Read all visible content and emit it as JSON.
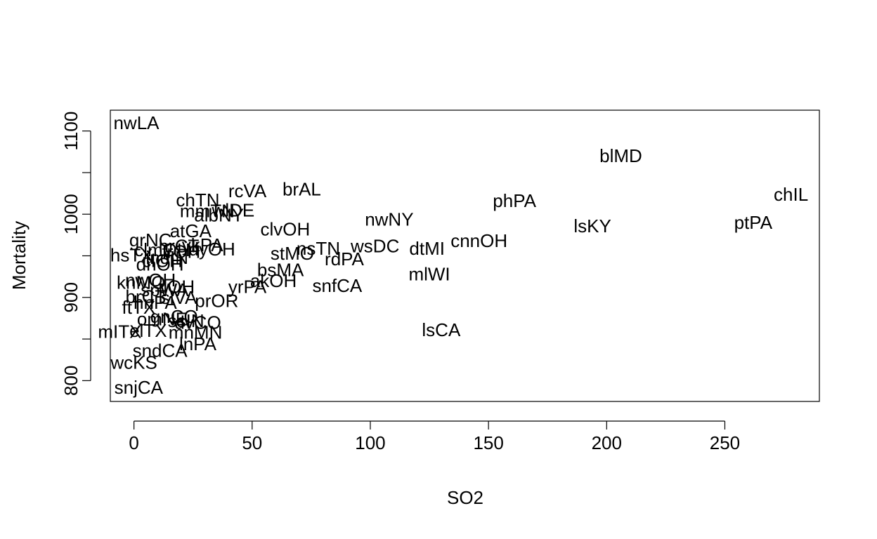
{
  "chart_data": {
    "type": "scatter",
    "title": "",
    "xlabel": "SO2",
    "ylabel": "Mortality",
    "xlim": [
      -10,
      290
    ],
    "ylim": [
      775,
      1125
    ],
    "xticks": [
      0,
      50,
      100,
      150,
      200,
      250
    ],
    "yticks": [
      800,
      900,
      1000,
      1100
    ],
    "points": [
      {
        "label": "nwLA",
        "x": 1,
        "y": 1110
      },
      {
        "label": "blMD",
        "x": 206,
        "y": 1070
      },
      {
        "label": "chIL",
        "x": 278,
        "y": 1024
      },
      {
        "label": "ptPA",
        "x": 262,
        "y": 990
      },
      {
        "label": "phPA",
        "x": 161,
        "y": 1016
      },
      {
        "label": "lsKY",
        "x": 194,
        "y": 986
      },
      {
        "label": "cnnOH",
        "x": 146,
        "y": 968
      },
      {
        "label": "nwNY",
        "x": 108,
        "y": 994
      },
      {
        "label": "wsDC",
        "x": 102,
        "y": 962
      },
      {
        "label": "dtMI",
        "x": 124,
        "y": 959
      },
      {
        "label": "mlWI",
        "x": 125,
        "y": 928
      },
      {
        "label": "lsCA",
        "x": 130,
        "y": 861
      },
      {
        "label": "brAL",
        "x": 71,
        "y": 1030
      },
      {
        "label": "rcVA",
        "x": 48,
        "y": 1028
      },
      {
        "label": "chTN",
        "x": 27,
        "y": 1017
      },
      {
        "label": "clvOH",
        "x": 64,
        "y": 982
      },
      {
        "label": "stMO",
        "x": 67,
        "y": 953
      },
      {
        "label": "nsTN",
        "x": 78,
        "y": 959
      },
      {
        "label": "rdPA",
        "x": 89,
        "y": 946
      },
      {
        "label": "snfCA",
        "x": 86,
        "y": 914
      },
      {
        "label": "bsMA",
        "x": 62,
        "y": 933
      },
      {
        "label": "akOH",
        "x": 59,
        "y": 920
      },
      {
        "label": "yrPA",
        "x": 48,
        "y": 913
      },
      {
        "label": "prOR",
        "x": 35,
        "y": 896
      },
      {
        "label": "mmTN",
        "x": 31,
        "y": 1004
      },
      {
        "label": "wlDE",
        "x": 42,
        "y": 1005
      },
      {
        "label": "albNY",
        "x": 36,
        "y": 999
      },
      {
        "label": "atGA",
        "x": 24,
        "y": 980
      },
      {
        "label": "grNC",
        "x": 7,
        "y": 969
      },
      {
        "label": "clmOH",
        "x": 12,
        "y": 957
      },
      {
        "label": "hsTX",
        "x": -1,
        "y": 951
      },
      {
        "label": "dyOH",
        "x": 33,
        "y": 958
      },
      {
        "label": "ykPA",
        "x": 29,
        "y": 963
      },
      {
        "label": "hrCT",
        "x": 19,
        "y": 962
      },
      {
        "label": "frOH",
        "x": 20,
        "y": 955
      },
      {
        "label": "indIN",
        "x": 14,
        "y": 948
      },
      {
        "label": "clOH",
        "x": 12,
        "y": 944
      },
      {
        "label": "dnOH",
        "x": 11,
        "y": 940
      },
      {
        "label": "knMO",
        "x": 3,
        "y": 918
      },
      {
        "label": "nwOH",
        "x": 7,
        "y": 921
      },
      {
        "label": "tlOH",
        "x": 18,
        "y": 913
      },
      {
        "label": "spWA",
        "x": 13,
        "y": 909
      },
      {
        "label": "slVA",
        "x": 19,
        "y": 900
      },
      {
        "label": "brCT",
        "x": 5,
        "y": 901
      },
      {
        "label": "hnPA",
        "x": 9,
        "y": 894
      },
      {
        "label": "ftTX",
        "x": 2,
        "y": 888
      },
      {
        "label": "gnCO",
        "x": 17,
        "y": 877
      },
      {
        "label": "omNE",
        "x": 12,
        "y": 874
      },
      {
        "label": "dvCO",
        "x": 27,
        "y": 870
      },
      {
        "label": "ssIN",
        "x": 22,
        "y": 872
      },
      {
        "label": "mnMN",
        "x": 26,
        "y": 858
      },
      {
        "label": "mITX",
        "x": -6,
        "y": 859
      },
      {
        "label": "elTX",
        "x": 6,
        "y": 860
      },
      {
        "label": "sndCA",
        "x": 11,
        "y": 836
      },
      {
        "label": "lnPA",
        "x": 27,
        "y": 844
      },
      {
        "label": "wcKS",
        "x": 0,
        "y": 822
      },
      {
        "label": "snjCA",
        "x": 2,
        "y": 792
      }
    ]
  }
}
